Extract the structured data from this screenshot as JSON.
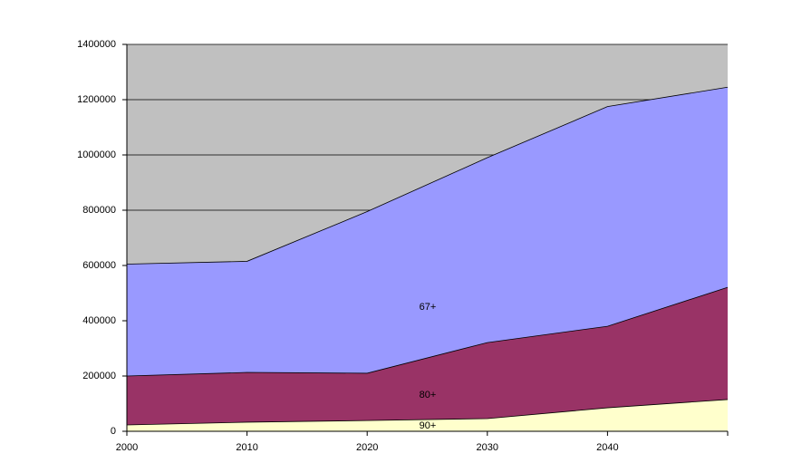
{
  "chart_data": {
    "type": "area",
    "categories": [
      "2000",
      "2010",
      "2020",
      "2030",
      "2040",
      null
    ],
    "series": [
      {
        "name": "67+",
        "color": "#9999ff",
        "values": [
          605000,
          615000,
          795000,
          990000,
          1175000,
          1245000
        ]
      },
      {
        "name": "80+",
        "color": "#993366",
        "values": [
          200000,
          213000,
          210000,
          321000,
          380000,
          521000
        ]
      },
      {
        "name": "90+",
        "color": "#ffffcc",
        "values": [
          23000,
          33000,
          39000,
          46000,
          85000,
          115000
        ]
      }
    ],
    "ylim": [
      0,
      1400000
    ],
    "yticks": [
      0,
      200000,
      400000,
      600000,
      800000,
      1000000,
      1200000,
      1400000
    ],
    "grid": true,
    "plot_background": "#c0c0c0"
  }
}
